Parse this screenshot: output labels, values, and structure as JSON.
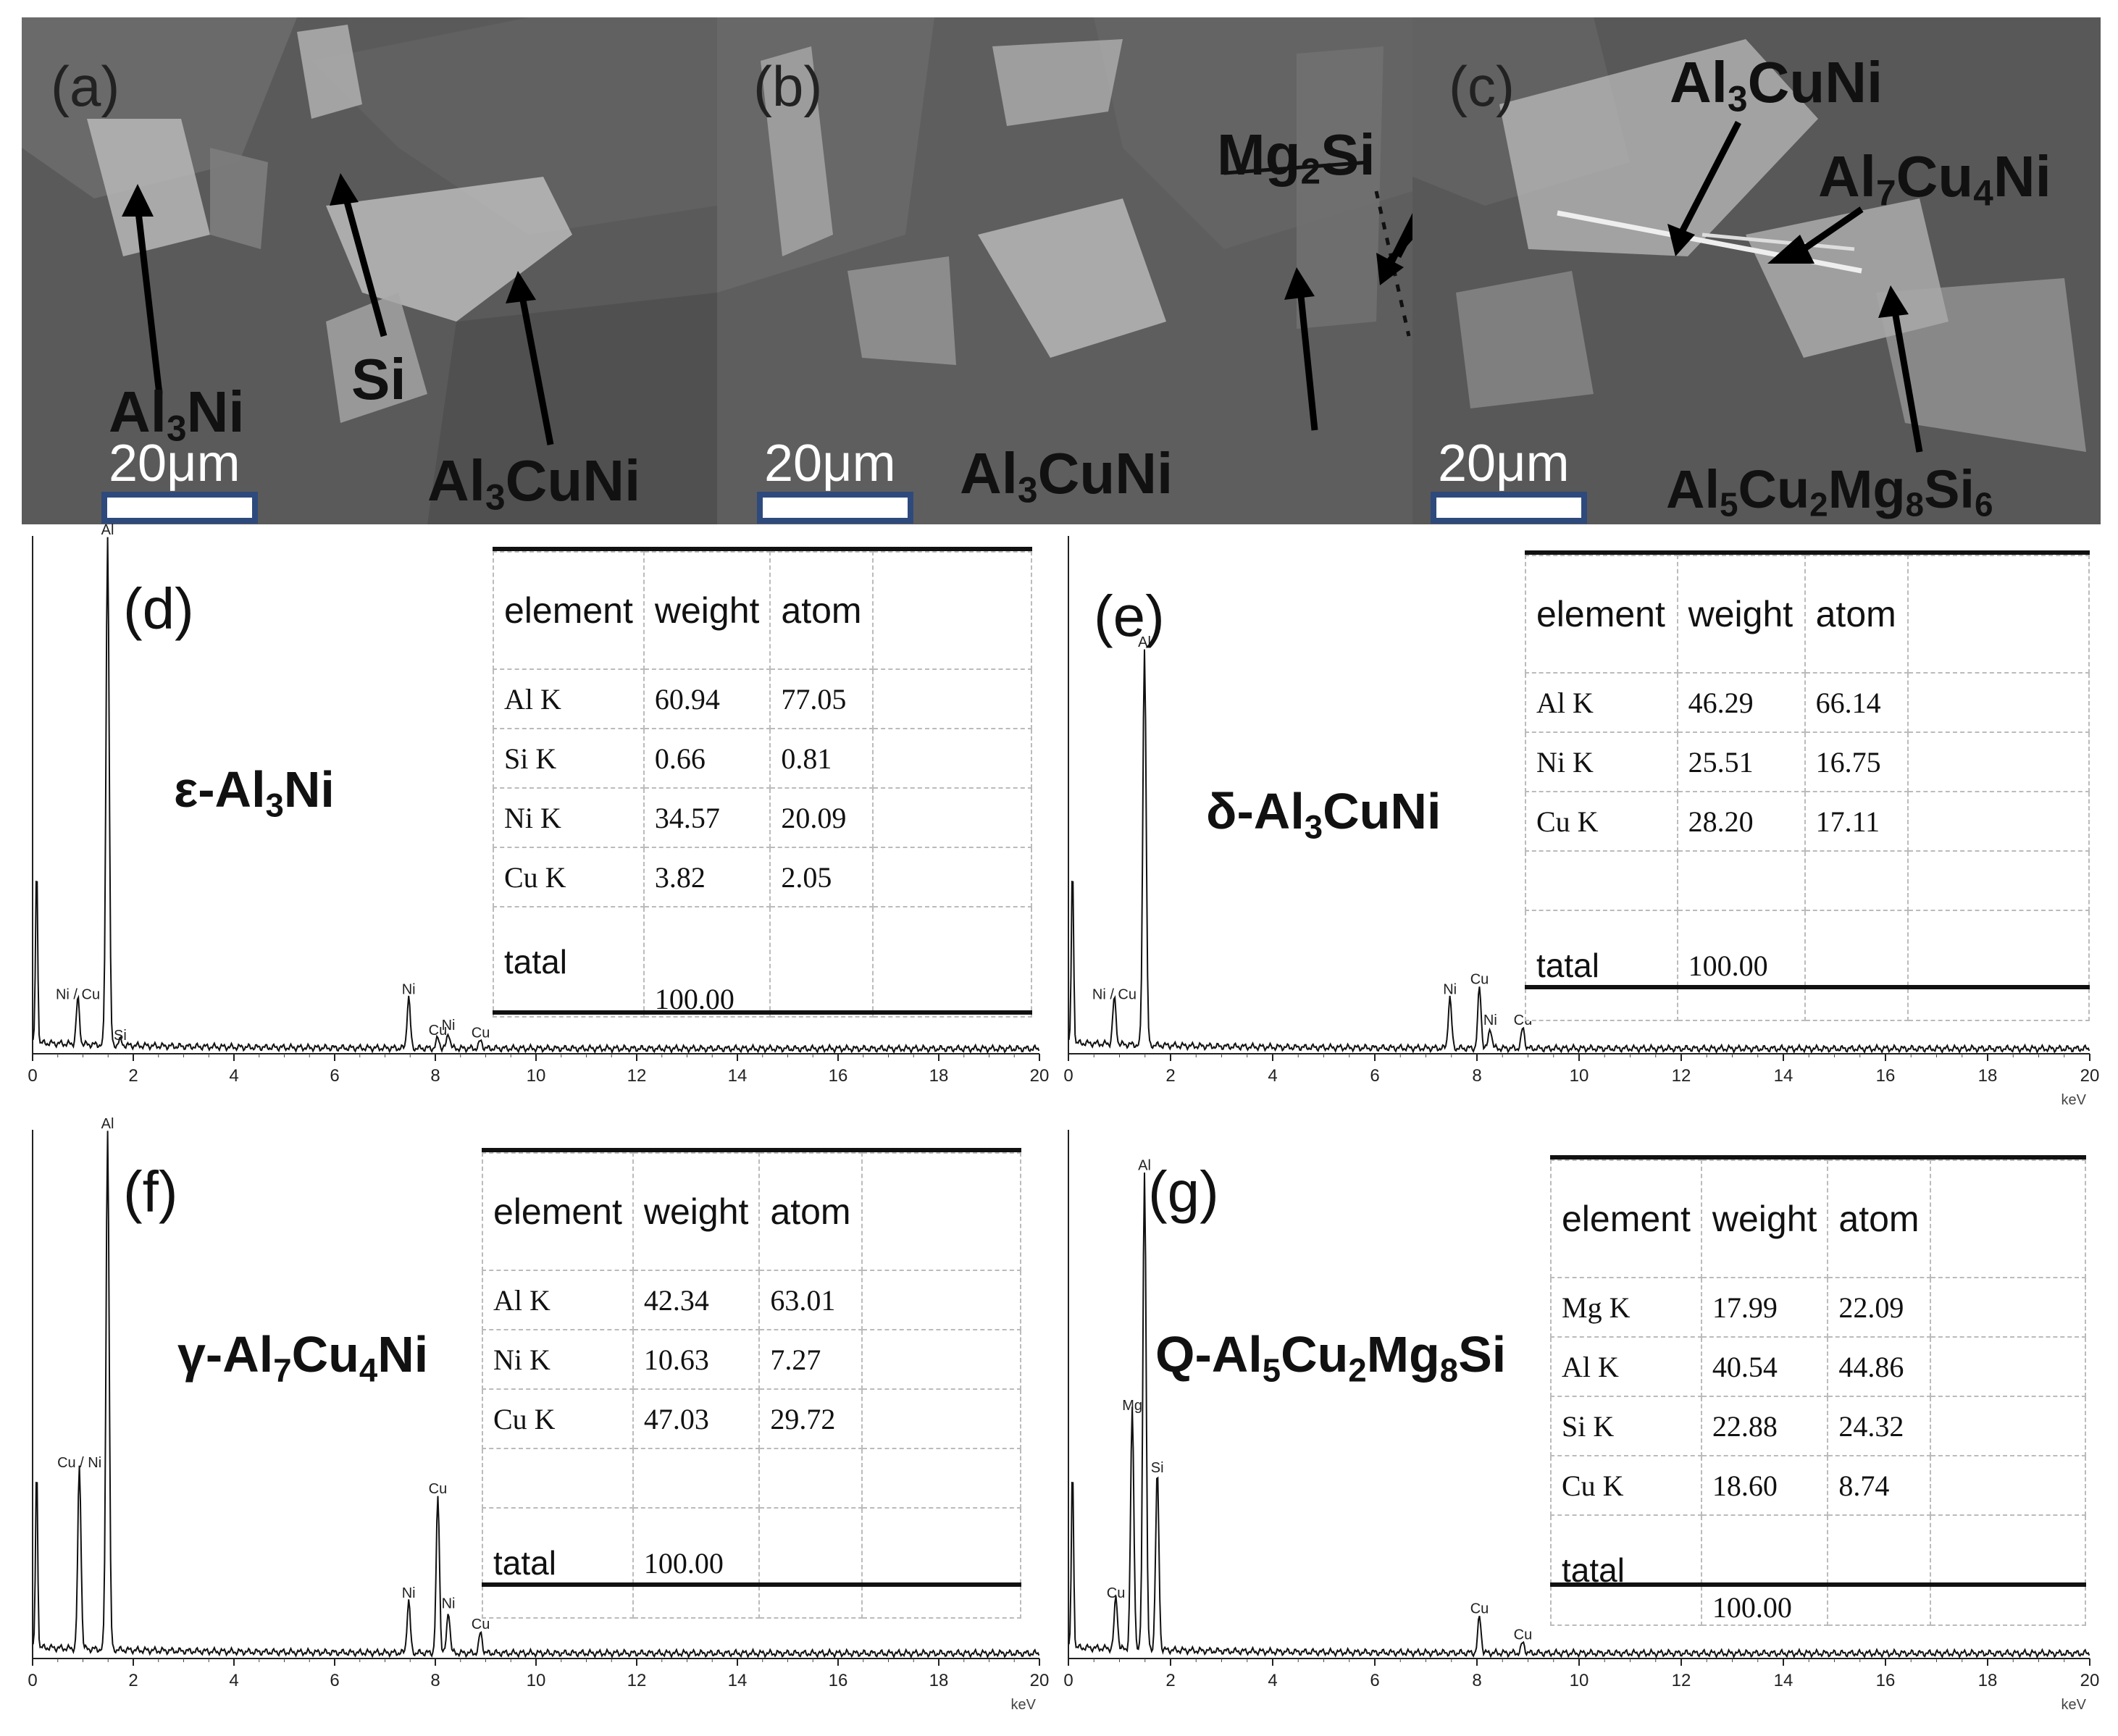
{
  "sem_panels": [
    {
      "letter": "(a)",
      "scale": "20μm",
      "phases": [
        {
          "main": "Al",
          "sub": "3",
          "rest": "Ni"
        },
        {
          "main": "Si",
          "sub": "",
          "rest": ""
        },
        {
          "main": "Al",
          "sub": "3",
          "rest": "CuNi"
        }
      ]
    },
    {
      "letter": "(b)",
      "scale": "20μm",
      "phases": [
        {
          "main": "Mg",
          "sub": "2",
          "rest": "Si"
        },
        {
          "main": "Al",
          "sub": "3",
          "rest": "CuNi"
        }
      ]
    },
    {
      "letter": "(c)",
      "scale": "20μm",
      "phases": [
        {
          "main": "Al",
          "sub": "3",
          "rest": "CuNi"
        },
        {
          "main": "Al",
          "sub": "7",
          "rest": "Cu",
          "sub2": "4",
          "rest2": "Ni"
        },
        {
          "main": "Al",
          "sub": "5",
          "rest": "Cu",
          "sub2": "2",
          "rest2": "Mg",
          "sub3": "8",
          "rest3": "Si",
          "sub4": "6"
        }
      ]
    }
  ],
  "eds_panels": [
    {
      "letter": "(d)",
      "phase": {
        "pre": "ε-Al",
        "s1": "3",
        "post": "Ni"
      },
      "xticks": [
        "0",
        "2",
        "4",
        "6",
        "8",
        "10",
        "12",
        "14",
        "16",
        "18",
        "20"
      ],
      "unit": "",
      "peaks": [
        "Al",
        "Ni",
        "Cu",
        "Si",
        "Ni",
        "Ni",
        "Cu",
        "Cu"
      ],
      "table": {
        "headers": [
          "element",
          "weight",
          "atom"
        ],
        "rows": [
          [
            "Al K",
            "60.94",
            "77.05"
          ],
          [
            "Si K",
            "0.66",
            "0.81"
          ],
          [
            "Ni K",
            "34.57",
            "20.09"
          ],
          [
            "Cu K",
            "3.82",
            "2.05"
          ]
        ],
        "total_label": "tatal",
        "total_value": "100.00"
      }
    },
    {
      "letter": "(e)",
      "phase": {
        "pre": "δ-Al",
        "s1": "3",
        "post": "CuNi"
      },
      "xticks": [
        "0",
        "2",
        "4",
        "6",
        "8",
        "10",
        "12",
        "14",
        "16",
        "18",
        "20"
      ],
      "unit": "keV",
      "peaks": [
        "Al",
        "Ni",
        "Cu",
        "Ni",
        "Cu",
        "Ni",
        "Cu"
      ],
      "table": {
        "headers": [
          "element",
          "weight",
          "atom"
        ],
        "rows": [
          [
            "Al K",
            "46.29",
            "66.14"
          ],
          [
            "Ni K",
            "25.51",
            "16.75"
          ],
          [
            "Cu K",
            "28.20",
            "17.11"
          ]
        ],
        "total_label": "tatal",
        "total_value": "100.00"
      }
    },
    {
      "letter": "(f)",
      "phase": {
        "pre": "γ-Al",
        "s1": "7",
        "mid": "Cu",
        "s2": "4",
        "post": "Ni"
      },
      "xticks": [
        "0",
        "2",
        "4",
        "6",
        "8",
        "10",
        "12",
        "14",
        "16",
        "18",
        "20"
      ],
      "unit": "keV",
      "peaks": [
        "Al",
        "Cu",
        "Ni",
        "Ni",
        "Cu",
        "Ni",
        "Cu"
      ],
      "table": {
        "headers": [
          "element",
          "weight",
          "atom"
        ],
        "rows": [
          [
            "Al K",
            "42.34",
            "63.01"
          ],
          [
            "Ni K",
            "10.63",
            "7.27"
          ],
          [
            "Cu K",
            "47.03",
            "29.72"
          ]
        ],
        "total_label": "tatal",
        "total_value": "100.00"
      }
    },
    {
      "letter": "(g)",
      "phase": {
        "pre": "Q-Al",
        "s1": "5",
        "mid": "Cu",
        "s2": "2",
        "mid2": "Mg",
        "s3": "8",
        "post": "Si"
      },
      "xticks": [
        "0",
        "2",
        "4",
        "6",
        "8",
        "10",
        "12",
        "14",
        "16",
        "18",
        "20"
      ],
      "unit": "keV",
      "peaks": [
        "Al",
        "Mg",
        "Si",
        "Cu",
        "Cu",
        "Cu"
      ],
      "table": {
        "headers": [
          "element",
          "weight",
          "atom"
        ],
        "rows": [
          [
            "Mg K",
            "17.99",
            "22.09"
          ],
          [
            "Al K",
            "40.54",
            "44.86"
          ],
          [
            "Si K",
            "22.88",
            "24.32"
          ],
          [
            "Cu K",
            "18.60",
            "8.74"
          ]
        ],
        "total_label": "tatal",
        "total_value": "100.00"
      }
    }
  ],
  "chart_data": [
    {
      "type": "line",
      "panel": "(d)",
      "xlabel": "",
      "xlim": [
        0,
        20
      ],
      "peaks": [
        {
          "label": "Al",
          "x": 1.49,
          "y": 1.0
        },
        {
          "label": "Ni / Cu",
          "x": 0.9,
          "y": 0.09
        },
        {
          "label": "Si",
          "x": 1.74,
          "y": 0.01
        },
        {
          "label": "Ni",
          "x": 7.47,
          "y": 0.1
        },
        {
          "label": "Ni",
          "x": 8.26,
          "y": 0.03
        },
        {
          "label": "Cu",
          "x": 8.05,
          "y": 0.02
        },
        {
          "label": "Cu",
          "x": 8.9,
          "y": 0.015
        }
      ]
    },
    {
      "type": "line",
      "panel": "(e)",
      "xlabel": "keV",
      "xlim": [
        0,
        20
      ],
      "peaks": [
        {
          "label": "Al",
          "x": 1.49,
          "y": 0.78
        },
        {
          "label": "Ni / Cu",
          "x": 0.9,
          "y": 0.09
        },
        {
          "label": "Ni",
          "x": 7.47,
          "y": 0.1
        },
        {
          "label": "Cu",
          "x": 8.05,
          "y": 0.12
        },
        {
          "label": "Ni",
          "x": 8.26,
          "y": 0.04
        },
        {
          "label": "Cu",
          "x": 8.9,
          "y": 0.04
        }
      ]
    },
    {
      "type": "line",
      "panel": "(f)",
      "xlabel": "keV",
      "xlim": [
        0,
        20
      ],
      "peaks": [
        {
          "label": "Al",
          "x": 1.49,
          "y": 1.0
        },
        {
          "label": "Cu / Ni",
          "x": 0.93,
          "y": 0.35
        },
        {
          "label": "Ni",
          "x": 7.47,
          "y": 0.1
        },
        {
          "label": "Cu",
          "x": 8.05,
          "y": 0.3
        },
        {
          "label": "Ni",
          "x": 8.26,
          "y": 0.08
        },
        {
          "label": "Cu",
          "x": 8.9,
          "y": 0.04
        }
      ]
    },
    {
      "type": "line",
      "panel": "(g)",
      "xlabel": "keV",
      "xlim": [
        0,
        20
      ],
      "peaks": [
        {
          "label": "Al",
          "x": 1.49,
          "y": 0.92
        },
        {
          "label": "Mg",
          "x": 1.25,
          "y": 0.46
        },
        {
          "label": "Si",
          "x": 1.74,
          "y": 0.34
        },
        {
          "label": "Cu",
          "x": 0.93,
          "y": 0.1
        },
        {
          "label": "Cu",
          "x": 8.05,
          "y": 0.07
        },
        {
          "label": "Cu",
          "x": 8.9,
          "y": 0.02
        }
      ]
    }
  ]
}
